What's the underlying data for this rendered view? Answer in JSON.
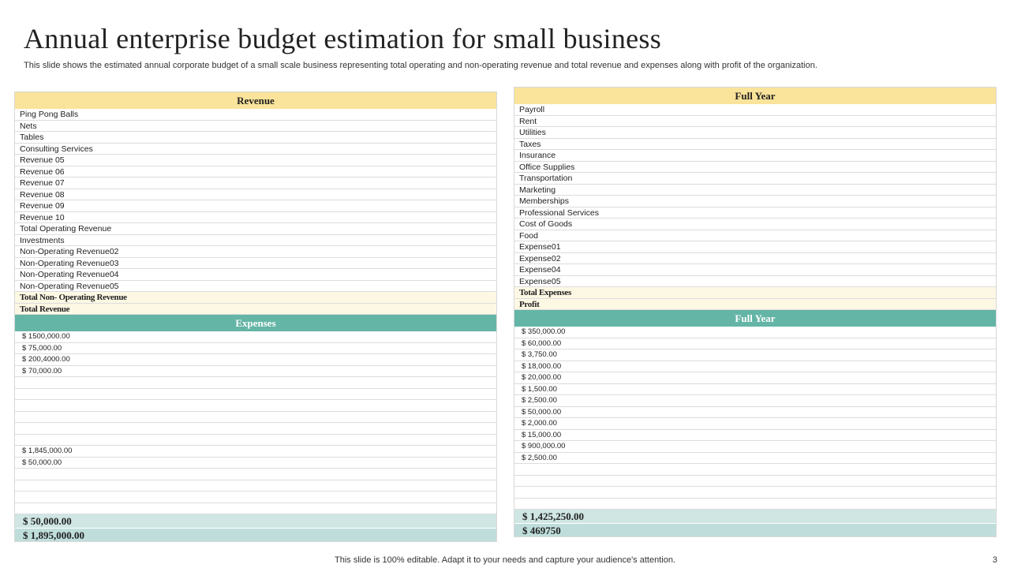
{
  "title": "Annual enterprise budget estimation for small business",
  "subtitle": "This slide shows the estimated annual corporate budget of a small scale business representing total operating and non-operating revenue and total revenue and expenses along with profit of the organization.",
  "left": {
    "revenue_header": "Revenue",
    "revenue_items": [
      "Ping Pong  Balls",
      "Nets",
      "Tables",
      "Consulting Services",
      "Revenue 05",
      "Revenue 06",
      "Revenue 07",
      "Revenue 08",
      "Revenue 09",
      "Revenue 10",
      "Total Operating Revenue",
      "Investments",
      "Non-Operating Revenue02",
      "Non-Operating Revenue03",
      "Non-Operating Revenue04",
      "Non-Operating Revenue05"
    ],
    "total_non_operating": "Total Non- Operating Revenue",
    "total_revenue": "Total Revenue",
    "expenses_header": "Expenses",
    "expense_amounts": [
      "$  1500,000.00",
      "$  75,000.00",
      "$  200,4000.00",
      "$  70,000.00",
      "",
      "",
      "",
      "",
      "",
      "",
      "$  1,845,000.00",
      "$   50,000.00",
      "",
      "",
      "",
      ""
    ],
    "sum_1": "$  50,000.00",
    "sum_2": "$  1,895,000.00"
  },
  "right": {
    "header_top": "Full Year",
    "expense_items": [
      "Payroll",
      "Rent",
      "Utilities",
      "Taxes",
      "Insurance",
      "Office Supplies",
      "Transportation",
      "Marketing",
      "Memberships",
      "Professional Services",
      "Cost of Goods",
      "Food",
      "Expense01",
      "Expense02",
      "Expense04",
      "Expense05"
    ],
    "total_expenses": "Total Expenses",
    "profit": "Profit",
    "header_bottom": "Full Year",
    "amounts": [
      "$  350,000.00",
      "$  60,000.00",
      "$  3,750.00",
      "$  18,000.00",
      "$  20,000.00",
      "$  1,500.00",
      "$  2,500.00",
      "$  50,000.00",
      "$  2,000.00",
      "$  15,000.00",
      "$  900,000.00",
      "$  2,500.00",
      "",
      "",
      "",
      ""
    ],
    "sum_1": "$  1,425,250.00",
    "sum_2": "$  469750"
  },
  "footer": "This slide is 100% editable. Adapt it to your needs and capture your audience's attention.",
  "page_number": "3"
}
